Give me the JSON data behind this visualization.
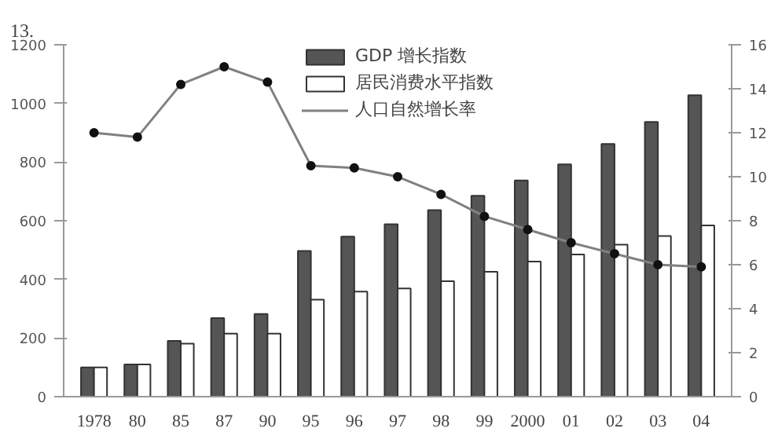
{
  "chart_data": {
    "type": "bar",
    "annotations": [
      "13."
    ],
    "categories": [
      "1978",
      "80",
      "85",
      "87",
      "90",
      "95",
      "96",
      "97",
      "98",
      "99",
      "2000",
      "01",
      "02",
      "03",
      "04"
    ],
    "series": [
      {
        "name": "GDP 增长指数",
        "color": "#555555",
        "values": [
          100,
          110,
          190,
          268,
          282,
          497,
          546,
          588,
          636,
          685,
          737,
          792,
          862,
          937,
          1028
        ]
      },
      {
        "name": "居民消费水平指数",
        "color": "#ffffff",
        "values": [
          100,
          110,
          181,
          215,
          215,
          331,
          358,
          369,
          394,
          426,
          461,
          485,
          518,
          548,
          584
        ]
      },
      {
        "name": "人口自然增长率",
        "type": "line",
        "axis": "y2",
        "color": "#808080",
        "values": [
          12.0,
          11.8,
          14.2,
          15.0,
          14.3,
          10.5,
          10.4,
          10.0,
          9.2,
          8.2,
          7.6,
          7.0,
          6.5,
          6.0,
          5.9
        ]
      }
    ],
    "ylim": [
      0,
      1200
    ],
    "yticks": [
      0,
      200,
      400,
      600,
      800,
      1000,
      1200
    ],
    "y2lim": [
      0,
      16
    ],
    "y2ticks": [
      0,
      2,
      4,
      6,
      8,
      10,
      12,
      14,
      16
    ],
    "marker": "circle",
    "legend": "top",
    "grid": false
  }
}
